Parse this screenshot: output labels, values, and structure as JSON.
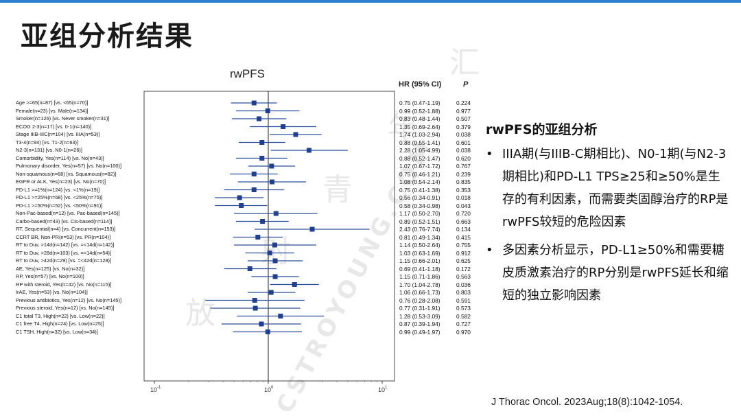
{
  "page_title": "亚组分析结果",
  "watermark_cn": [
    "放",
    "射",
    "青",
    "年",
    "汇"
  ],
  "watermark_en": "CSTROYOUNG.COM",
  "right_panel": {
    "heading": "rwPFS的亚组分析",
    "bullets": [
      "IIIA期(与IIIB-C期相比)、N0-1期(与N2-3期相比)和PD-L1 TPS≥25和≥50%是生存的有利因素，而需要类固醇治疗的RP是rwPFS较短的危险因素",
      "多因素分析显示，PD-L1≥50%和需要糖皮质激素治疗的RP分别是rwPFS延长和缩短的独立影响因素"
    ],
    "bullet_symbol": "•"
  },
  "citation": "J Thorac Oncol. 2023Aug;18(8):1042-1054.",
  "colors": {
    "accent": "#2f7fd0",
    "point": "#1f3f8f",
    "ci_line": "#2a4c9e",
    "reference_line": "#222222"
  },
  "chart_data": {
    "type": "forest",
    "title": "rwPFS",
    "hr_header": "HR (95% CI)",
    "p_header": "P",
    "x_scale": "log",
    "xlim": [
      0.1,
      10
    ],
    "x_ticks": [
      {
        "value": 0.1,
        "base": "10",
        "exp": "-1"
      },
      {
        "value": 1,
        "base": "10",
        "exp": "0"
      },
      {
        "value": 10,
        "base": "10",
        "exp": "1"
      }
    ],
    "reference": 1,
    "rows": [
      {
        "label": "Age >=65(n=87) [vs. <65(n=70)]",
        "hr": 0.75,
        "lo": 0.47,
        "hi": 1.19,
        "hr_text": "0.75 (0.47-1.19)",
        "p": "0.224"
      },
      {
        "label": "Female(n=23) [vs. Male(n=134)]",
        "hr": 0.99,
        "lo": 0.52,
        "hi": 1.88,
        "hr_text": "0.99 (0.52-1.88)",
        "p": "0.977"
      },
      {
        "label": "Smoker(n=126) [vs. Never smoker(n=31)]",
        "hr": 0.83,
        "lo": 0.48,
        "hi": 1.44,
        "hr_text": "0.83 (0.48-1.44)",
        "p": "0.507"
      },
      {
        "label": "ECOG 2-3(n=17) [vs. 0-1(n=140)]",
        "hr": 1.35,
        "lo": 0.69,
        "hi": 2.64,
        "hr_text": "1.35 (0.69-2.64)",
        "p": "0.379"
      },
      {
        "label": "Stage IIIB-IIIC(n=104) [vs. IIIA(n=53)]",
        "hr": 1.74,
        "lo": 1.03,
        "hi": 2.94,
        "hr_text": "1.74 (1.03-2.94)",
        "p": "0.038"
      },
      {
        "label": "T3-4(n=94) [vs. T1-2(n=63)]",
        "hr": 0.88,
        "lo": 0.55,
        "hi": 1.41,
        "hr_text": "0.88 (0.55-1.41)",
        "p": "0.601"
      },
      {
        "label": "N2-3(n=131) [vs. N0-1(n=26)]",
        "hr": 2.28,
        "lo": 1.05,
        "hi": 4.99,
        "hr_text": "2.28 (1.05-4.99)",
        "p": "0.038"
      },
      {
        "label": "Comorbidity, Yes(n=114) [vs. No(n=43)]",
        "hr": 0.88,
        "lo": 0.52,
        "hi": 1.47,
        "hr_text": "0.88 (0.52-1.47)",
        "p": "0.620"
      },
      {
        "label": "Pulmonary disorder, Yes(n=57) [vs. No(n=100)]",
        "hr": 1.07,
        "lo": 0.67,
        "hi": 1.72,
        "hr_text": "1.07 (0.67-1.72)",
        "p": "0.767"
      },
      {
        "label": "Non-squamous(n=68) [vs. Squamous(n=82)]",
        "hr": 0.75,
        "lo": 0.46,
        "hi": 1.21,
        "hr_text": "0.75 (0.46-1.21)",
        "p": "0.239"
      },
      {
        "label": "EGFR or ALK, Yes(n=23) [vs. No(n=70)]",
        "hr": 1.08,
        "lo": 0.54,
        "hi": 2.14,
        "hr_text": "1.08 (0.54-2.14)",
        "p": "0.835"
      },
      {
        "label": "PD-L1 >=1%(n=124) [vs. <1%(n=19)]",
        "hr": 0.75,
        "lo": 0.41,
        "hi": 1.38,
        "hr_text": "0.75 (0.41-1.38)",
        "p": "0.353"
      },
      {
        "label": "PD-L1 >=25%(n=68) [vs. <25%(n=75)]",
        "hr": 0.56,
        "lo": 0.34,
        "hi": 0.91,
        "hr_text": "0.56 (0.34-0.91)",
        "p": "0.018"
      },
      {
        "label": "PD-L1 >=50%(n=52) [vs. <50%(n=91)]",
        "hr": 0.58,
        "lo": 0.34,
        "hi": 0.98,
        "hr_text": "0.58 (0.34-0.98)",
        "p": "0.043"
      },
      {
        "label": "Non-Pac-based(n=12) [vs. Pac-based(n=145)]",
        "hr": 1.17,
        "lo": 0.5,
        "hi": 2.7,
        "hr_text": "1.17 (0.50-2.70)",
        "p": "0.720"
      },
      {
        "label": "Carbo-based(n=43) [vs. Cis-based(n=114)]",
        "hr": 0.89,
        "lo": 0.52,
        "hi": 1.51,
        "hr_text": "0.89 (0.52-1.51)",
        "p": "0.663"
      },
      {
        "label": "RT, Sequential(n=4) [vs. Concurrent(n=153)]",
        "hr": 2.43,
        "lo": 0.76,
        "hi": 7.74,
        "hr_text": "2.43 (0.76-7.74)",
        "p": "0.134"
      },
      {
        "label": "CCRT BR, Non-PR(n=53) [vs. PR(n=104)]",
        "hr": 0.81,
        "lo": 0.49,
        "hi": 1.34,
        "hr_text": "0.81 (0.49-1.34)",
        "p": "0.415"
      },
      {
        "label": "RT to Duv, >14d(n=142) [vs. =<14d(n=142)]",
        "hr": 1.14,
        "lo": 0.5,
        "hi": 2.64,
        "hr_text": "1.14 (0.50-2.64)",
        "p": "0.755"
      },
      {
        "label": "RT to Duv, >28d(n=103) [vs. =<14d(n=54)]",
        "hr": 1.03,
        "lo": 0.63,
        "hi": 1.69,
        "hr_text": "1.03 (0.63-1.69)",
        "p": "0.912"
      },
      {
        "label": "RT to Duv, >42d(n=29) [vs. =<42d(n=128)]",
        "hr": 1.15,
        "lo": 0.66,
        "hi": 2.01,
        "hr_text": "1.15 (0.66-2.01)",
        "p": "0.625"
      },
      {
        "label": "AE, Yes(n=125) [vs. No(n=32)]",
        "hr": 0.69,
        "lo": 0.41,
        "hi": 1.18,
        "hr_text": "0.69 (0.41-1.18)",
        "p": "0.172"
      },
      {
        "label": "RP, Yes(n=57) [vs. No(n=100)]",
        "hr": 1.15,
        "lo": 0.71,
        "hi": 1.86,
        "hr_text": "1.15 (0.71-1.86)",
        "p": "0.563"
      },
      {
        "label": "RP with steroid, Yes(n=42) [vs. No(n=115)]",
        "hr": 1.7,
        "lo": 1.04,
        "hi": 2.78,
        "hr_text": "1.70 (1.04-2.78)",
        "p": "0.036"
      },
      {
        "label": "IrAE, Yes(n=53) [vs. No(n=104)]",
        "hr": 1.06,
        "lo": 0.66,
        "hi": 1.73,
        "hr_text": "1.06 (0.66-1.73)",
        "p": "0.803"
      },
      {
        "label": "Previous antibiotics, Yes(n=12) [vs. No(n=145)]",
        "hr": 0.76,
        "lo": 0.28,
        "hi": 2.08,
        "hr_text": "0.76 (0.28-2.08)",
        "p": "0.591"
      },
      {
        "label": "Previous steroid, Yes(n=12) [vs. No(n=145)]",
        "hr": 0.77,
        "lo": 0.31,
        "hi": 1.91,
        "hr_text": "0.77 (0.31-1.91)",
        "p": "0.573"
      },
      {
        "label": "C1 total T3, High(n=22) [vs. Low(n=22)]",
        "hr": 1.28,
        "lo": 0.53,
        "hi": 3.09,
        "hr_text": "1.28 (0.53-3.09)",
        "p": "0.582"
      },
      {
        "label": "C1 free T4, High(n=24) [vs. Low(n=25)]",
        "hr": 0.87,
        "lo": 0.39,
        "hi": 1.94,
        "hr_text": "0.87 (0.39-1.94)",
        "p": "0.727"
      },
      {
        "label": "C1 TSH, High(n=32) [vs. Low(n=34)]",
        "hr": 0.99,
        "lo": 0.49,
        "hi": 1.97,
        "hr_text": "0.99 (0.49-1.97)",
        "p": "0.970"
      }
    ]
  }
}
